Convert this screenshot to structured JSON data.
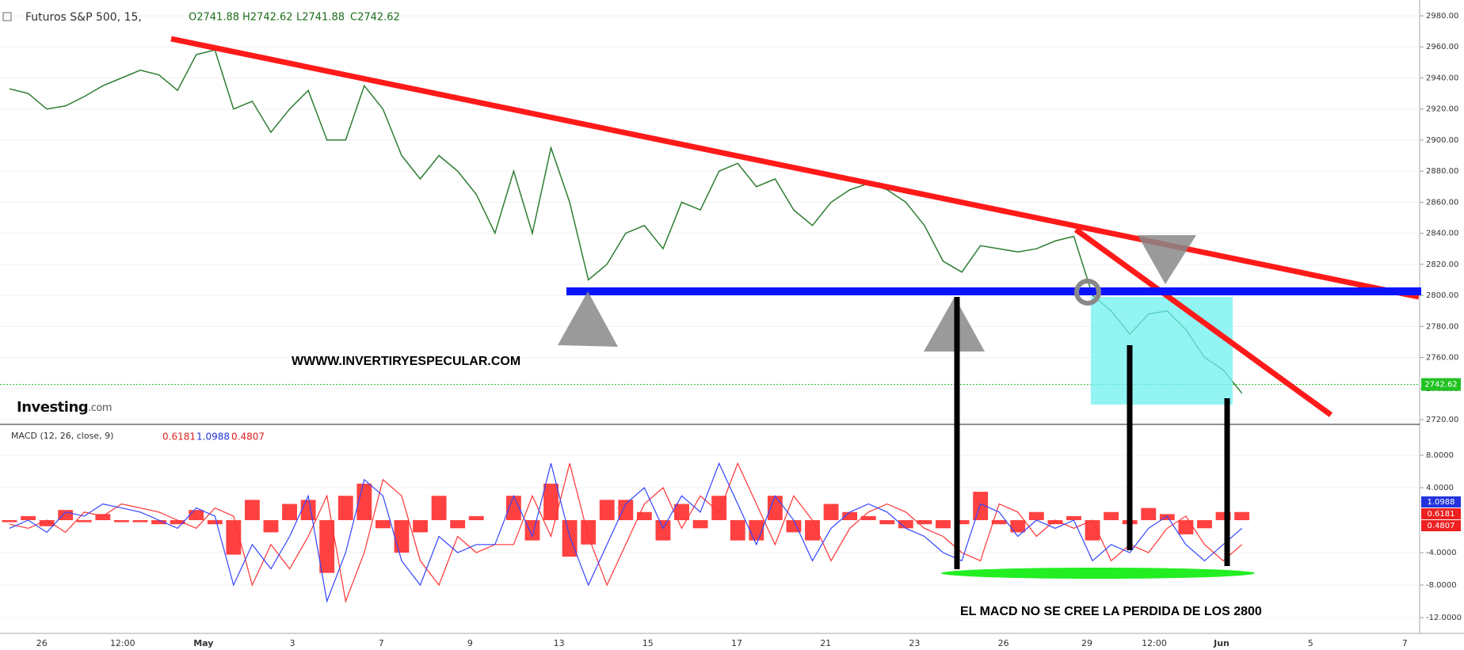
{
  "header": {
    "title": "Futuros S&P 500, 15,",
    "open": "O2741.88",
    "high": "H2742.62",
    "low": "L2741.88",
    "close": "C2742.62"
  },
  "macd_header": {
    "title": "MACD (12, 26, close, 9)",
    "v1": "0.6181",
    "v2": "1.0988",
    "v3": "0.4807"
  },
  "annotations": {
    "site": "WWWW.INVERTIRYESPECULAR.COM",
    "note": "EL MACD NO SE CREE LA PERDIDA DE LOS 2800",
    "logo": "Investing",
    "logo_suffix": ".com"
  },
  "time_axis": [
    "26",
    "12:00",
    "May",
    "3",
    "7",
    "9",
    "13",
    "15",
    "17",
    "21",
    "23",
    "26",
    "29",
    "12:00",
    "Jun",
    "5",
    "7"
  ],
  "chart_data": [
    {
      "type": "line",
      "color": "#2e7d32",
      "values": [
        2933,
        2930,
        2920,
        2922,
        2928,
        2935,
        2940,
        2945,
        2942,
        2932,
        2955,
        2958,
        2920,
        2925,
        2905,
        2920,
        2932,
        2900,
        2900,
        2935,
        2920,
        2890,
        2875,
        2890,
        2880,
        2865,
        2840,
        2880,
        2840,
        2895,
        2860,
        2810,
        2820,
        2840,
        2845,
        2830,
        2860,
        2855,
        2880,
        2885,
        2870,
        2875,
        2855,
        2845,
        2860,
        2868,
        2872,
        2868,
        2860,
        2845,
        2822,
        2815,
        2832,
        2830,
        2828,
        2830,
        2835,
        2838,
        2800,
        2790,
        2775,
        2788,
        2790,
        2778,
        2760,
        2752,
        2737
      ],
      "last_price": 2742.62,
      "ylim": [
        2710,
        2990
      ],
      "yticks": [
        {
          "value": 2980,
          "label": "2980.00"
        },
        {
          "value": 2960,
          "label": "2960.00"
        },
        {
          "value": 2940,
          "label": "2940.00"
        },
        {
          "value": 2920,
          "label": "2920.00"
        },
        {
          "value": 2900,
          "label": "2900.00"
        },
        {
          "value": 2880,
          "label": "2880.00"
        },
        {
          "value": 2860,
          "label": "2860.00"
        },
        {
          "value": 2840,
          "label": "2840.00"
        },
        {
          "value": 2820,
          "label": "2820.00"
        },
        {
          "value": 2800,
          "label": "2800.00"
        },
        {
          "value": 2780,
          "label": "2780.00"
        },
        {
          "value": 2760,
          "label": "2760.00"
        },
        {
          "value": 2740,
          "label": "2740.00"
        },
        {
          "value": 2720,
          "label": "2720.00"
        }
      ]
    },
    {
      "type": "macd",
      "series": [
        {
          "name": "MACD",
          "color": "#3344ff",
          "values": [
            -1,
            0,
            -1.5,
            1,
            0.5,
            2,
            1.5,
            1,
            0,
            -1,
            1.5,
            0.5,
            -8,
            -3,
            -6,
            -2,
            3,
            -10,
            -4,
            5,
            3,
            -5,
            -8,
            -2,
            -4,
            -3,
            -3,
            3,
            -2,
            7,
            -2,
            -8,
            -3,
            2,
            4,
            -1,
            3,
            1,
            7,
            2,
            -3,
            3,
            0,
            -5,
            -1,
            1,
            2,
            1,
            -1,
            -2,
            -4,
            -5,
            2,
            1,
            -2,
            0,
            -1,
            0,
            -5,
            -3,
            -4,
            -1,
            0.5,
            -3,
            -5,
            -3,
            -1
          ]
        },
        {
          "name": "Signal",
          "color": "#ff3333",
          "values": [
            -0.5,
            -1,
            0,
            -1.5,
            1,
            0.5,
            2,
            1.5,
            1,
            0,
            -1,
            1.5,
            0.5,
            -8,
            -3,
            -6,
            -2,
            3,
            -10,
            -4,
            5,
            3,
            -5,
            -8,
            -2,
            -4,
            -3,
            -3,
            3,
            -2,
            7,
            -2,
            -8,
            -3,
            2,
            4,
            -1,
            3,
            1,
            7,
            2,
            -3,
            3,
            0,
            -5,
            -1,
            1,
            2,
            1,
            -1,
            -2,
            -4,
            -5,
            2,
            1,
            -2,
            0,
            -1,
            0,
            -5,
            -3,
            -4,
            -1,
            0.5,
            -3,
            -5,
            -3
          ]
        },
        {
          "name": "Histogram",
          "color": "#ff2020",
          "values": [
            -0.25,
            0.5,
            -0.75,
            1.25,
            -0.25,
            0.75,
            -0.25,
            -0.25,
            -0.5,
            -0.5,
            1.25,
            -0.5,
            -4.25,
            2.5,
            -1.5,
            2,
            2.5,
            -6.5,
            3,
            4.5,
            -1,
            -4,
            -1.5,
            3,
            -1,
            0.5,
            0,
            3,
            -2.5,
            4.5,
            -4.5,
            -3,
            2.5,
            2.5,
            1,
            -2.5,
            2,
            -1,
            3,
            -2.5,
            -2.5,
            3,
            -1.5,
            -2.5,
            2,
            1,
            0.5,
            -0.5,
            -1,
            -0.5,
            -1,
            -0.5,
            3.5,
            -0.5,
            -1.5,
            1,
            -0.5,
            0.5,
            -2.5,
            1,
            -0.5,
            1.5,
            0.75,
            -1.75,
            -1,
            1,
            1
          ]
        }
      ],
      "ylim": [
        -14,
        10
      ],
      "yticks": [
        {
          "value": 8,
          "label": "8.0000"
        },
        {
          "value": 4,
          "label": "4.0000"
        },
        {
          "value": -4,
          "label": "-4.0000"
        },
        {
          "value": -8,
          "label": "-8.0000"
        },
        {
          "value": -12,
          "label": "-12.0000"
        }
      ]
    }
  ]
}
